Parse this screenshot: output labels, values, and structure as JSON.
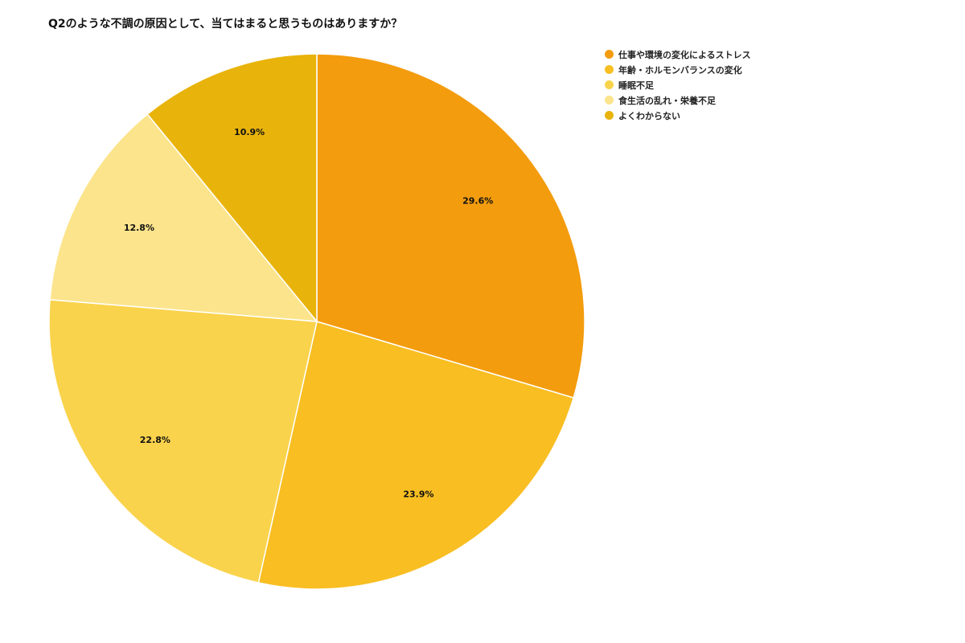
{
  "chart_data": {
    "type": "pie",
    "title": "Q2のような不調の原因として、当てはまると思うものはありますか？",
    "legend_position": "top-right",
    "slices": [
      {
        "label": "仕事や環境の変化によるストレス",
        "value": 29.6,
        "value_label": "29.6%",
        "color": "#F39C0E"
      },
      {
        "label": "年齢・ホルモンバランスの変化",
        "value": 23.9,
        "value_label": "23.9%",
        "color": "#F8BE22"
      },
      {
        "label": "睡眠不足",
        "value": 22.8,
        "value_label": "22.8%",
        "color": "#FAD34C"
      },
      {
        "label": "食生活の乱れ・栄養不足",
        "value": 12.8,
        "value_label": "12.8%",
        "color": "#FBE48C"
      },
      {
        "label": "よくわからない",
        "value": 10.9,
        "value_label": "10.9%",
        "color": "#E8B30B"
      }
    ]
  }
}
